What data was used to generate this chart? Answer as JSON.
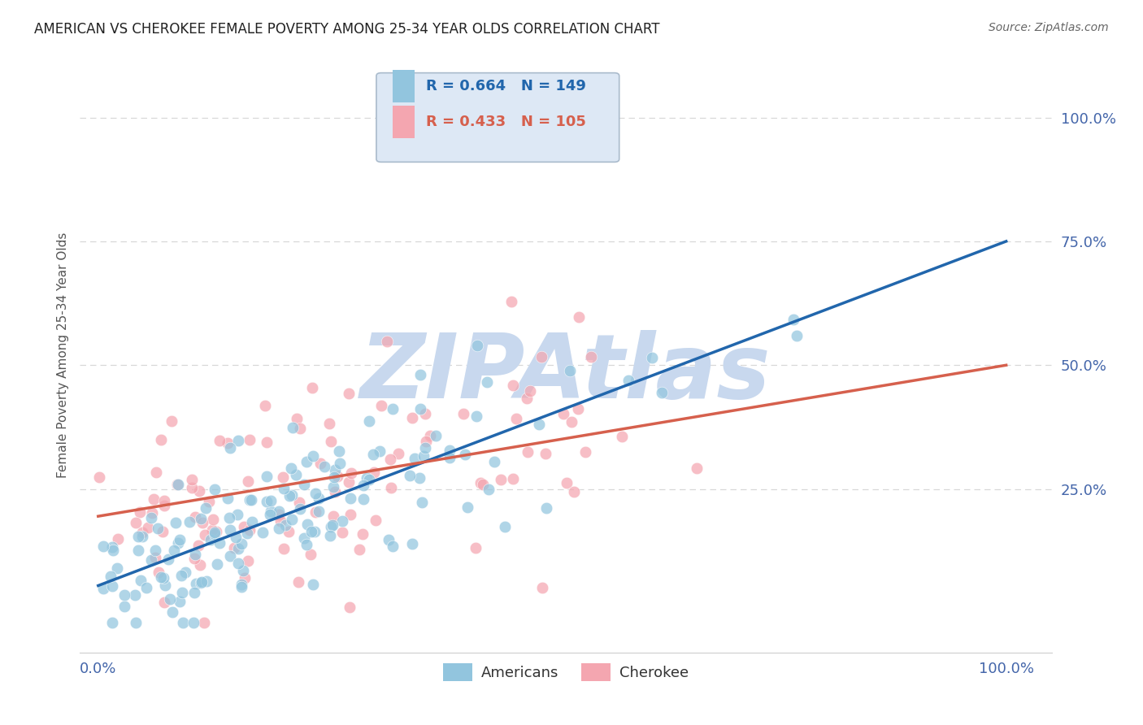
{
  "title": "AMERICAN VS CHEROKEE FEMALE POVERTY AMONG 25-34 YEAR OLDS CORRELATION CHART",
  "source": "Source: ZipAtlas.com",
  "ylabel": "Female Poverty Among 25-34 Year Olds",
  "xlim": [
    -0.02,
    1.05
  ],
  "ylim": [
    -0.08,
    1.12
  ],
  "xtick_positions": [
    0.0,
    1.0
  ],
  "xtick_labels": [
    "0.0%",
    "100.0%"
  ],
  "ytick_positions": [
    0.25,
    0.5,
    0.75,
    1.0
  ],
  "ytick_labels": [
    "25.0%",
    "50.0%",
    "75.0%",
    "100.0%"
  ],
  "americans_color": "#92c5de",
  "cherokee_color": "#f4a6b0",
  "americans_line_color": "#2166ac",
  "cherokee_line_color": "#d6604d",
  "americans_R": 0.664,
  "americans_N": 149,
  "cherokee_R": 0.433,
  "cherokee_N": 105,
  "background_color": "#ffffff",
  "watermark_color": "#c8d8ee",
  "grid_color": "#d8d8d8",
  "legend_box_color": "#dde8f5",
  "legend_border_color": "#aabbcc",
  "americans_intercept": 0.055,
  "americans_slope": 0.695,
  "cherokee_intercept": 0.195,
  "cherokee_slope": 0.305,
  "title_color": "#222222",
  "source_color": "#666666",
  "tick_label_color": "#4466aa",
  "ylabel_color": "#555555"
}
